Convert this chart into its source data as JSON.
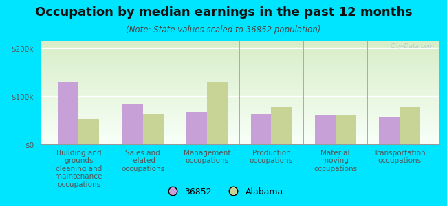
{
  "title": "Occupation by median earnings in the past 12 months",
  "subtitle": "(Note: State values scaled to 36852 population)",
  "categories": [
    "Building and\ngrounds\ncleaning and\nmaintenance\noccupations",
    "Sales and\nrelated\noccupations",
    "Management\noccupations",
    "Production\noccupations",
    "Material\nmoving\noccupations",
    "Transportation\noccupations"
  ],
  "values_36852": [
    130000,
    85000,
    68000,
    63000,
    62000,
    58000
  ],
  "values_alabama": [
    52000,
    63000,
    130000,
    78000,
    60000,
    78000
  ],
  "color_36852": "#c8a0d8",
  "color_alabama": "#c8d496",
  "yticks": [
    0,
    100000,
    200000
  ],
  "ytick_labels": [
    "$0",
    "$100k",
    "$200k"
  ],
  "ylim": [
    0,
    215000
  ],
  "outer_background": "#00e5ff",
  "chart_bg_top": "#d8eec8",
  "chart_bg_bottom": "#f8fff8",
  "watermark": "City-Data.com",
  "legend_label_36852": "36852",
  "legend_label_alabama": "Alabama",
  "bar_width": 0.32,
  "title_fontsize": 13,
  "subtitle_fontsize": 8.5,
  "tick_label_fontsize": 7.5,
  "legend_fontsize": 9,
  "separator_color": "#aaaaaa"
}
